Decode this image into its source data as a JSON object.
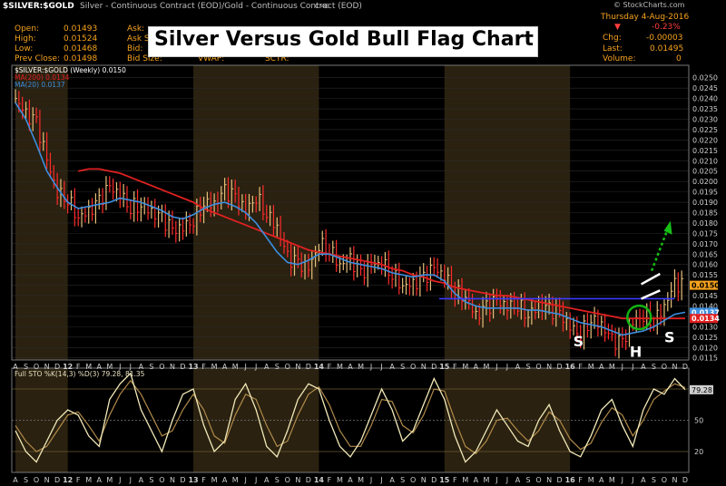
{
  "header": {
    "symbol": "$SILVER:$GOLD",
    "description": "Silver - Continuous Contract (EOD)/Gold - Continuous Contract (EOD)",
    "exchange": "CME",
    "watermark": "© StockCharts.com",
    "date": "Thursday 4-Aug-2016",
    "change_pct": "-0.23%",
    "chg_label": "Chg:",
    "chg_value": "-0.00003",
    "last_label": "Last:",
    "last_value": "0.01495",
    "volume_label": "Volume:",
    "volume_value": "0",
    "open_label": "Open:",
    "open_value": "0.01493",
    "high_label": "High:",
    "high_value": "0.01524",
    "low_label": "Low:",
    "low_value": "0.01468",
    "prev_label": "Prev Close:",
    "prev_value": "0.01498",
    "ask_label": "Ask:",
    "ask_label2": "Ask S",
    "bid_label": "Bid:",
    "bid_size_label": "Bid Size:",
    "vwap_label": "VWAP:",
    "sctr_label": "SCTR:"
  },
  "title_overlay": "Silver Versus Gold Bull Flag Chart",
  "colors": {
    "up_bar": "#e8c07a",
    "down_bar": "#ff2a2a",
    "ma200": "#e12020",
    "ma20": "#3d8fe0",
    "stoch_k": "#f2e9b8",
    "stoch_d": "#b08a4a",
    "band": "#2a2110",
    "neckline": "#3a3aff"
  },
  "chart_data": [
    {
      "type": "line",
      "title": "$SILVER:$GOLD (Weekly) 0.0150",
      "x_ticks": [
        "A",
        "S",
        "O",
        "N",
        "D",
        "12",
        "F",
        "M",
        "A",
        "M",
        "J",
        "J",
        "A",
        "S",
        "O",
        "N",
        "D",
        "13",
        "F",
        "M",
        "A",
        "M",
        "J",
        "J",
        "A",
        "S",
        "O",
        "N",
        "D",
        "14",
        "F",
        "M",
        "A",
        "M",
        "J",
        "J",
        "A",
        "S",
        "O",
        "N",
        "D",
        "15",
        "F",
        "M",
        "A",
        "M",
        "J",
        "J",
        "A",
        "S",
        "O",
        "N",
        "D",
        "16",
        "F",
        "M",
        "A",
        "M",
        "J",
        "J",
        "A",
        "S",
        "O",
        "N",
        "D"
      ],
      "y_ticks": [
        "0.0250",
        "0.0245",
        "0.0240",
        "0.0235",
        "0.0230",
        "0.0225",
        "0.0220",
        "0.0215",
        "0.0210",
        "0.0205",
        "0.0200",
        "0.0195",
        "0.0190",
        "0.0185",
        "0.0180",
        "0.0175",
        "0.0170",
        "0.0165",
        "0.0160",
        "0.0155",
        "0.0150",
        "0.0145",
        "0.0140",
        "0.0135",
        "0.0130",
        "0.0125",
        "0.0120",
        "0.0115"
      ],
      "ylim": [
        0.0114,
        0.0256
      ],
      "series": [
        {
          "name": "$SILVER:$GOLD (Weekly) 0.0150",
          "values": [
            0.024,
            0.0232,
            0.0228,
            0.021,
            0.0195,
            0.0192,
            0.0183,
            0.0185,
            0.019,
            0.0197,
            0.0194,
            0.0188,
            0.0189,
            0.0185,
            0.0182,
            0.0176,
            0.0178,
            0.0182,
            0.019,
            0.0189,
            0.0195,
            0.0192,
            0.0186,
            0.0193,
            0.0185,
            0.0178,
            0.0163,
            0.016,
            0.0158,
            0.017,
            0.0168,
            0.016,
            0.0162,
            0.0155,
            0.016,
            0.0161,
            0.0156,
            0.015,
            0.015,
            0.0153,
            0.0158,
            0.0155,
            0.0147,
            0.0145,
            0.0135,
            0.0139,
            0.0142,
            0.014,
            0.0141,
            0.0136,
            0.014,
            0.0138,
            0.0136,
            0.013,
            0.0127,
            0.0134,
            0.0131,
            0.0123,
            0.0122,
            0.0132,
            0.0136,
            0.0133,
            0.014,
            0.015,
            0.015
          ]
        },
        {
          "name": "MA(20) 0.0137",
          "values": [
            0.0238,
            0.023,
            0.0218,
            0.0205,
            0.0197,
            0.019,
            0.0187,
            0.0188,
            0.0189,
            0.019,
            0.0192,
            0.0191,
            0.019,
            0.0188,
            0.0186,
            0.0183,
            0.0182,
            0.0184,
            0.0187,
            0.0189,
            0.019,
            0.0188,
            0.0185,
            0.018,
            0.0173,
            0.0166,
            0.0161,
            0.016,
            0.0162,
            0.0165,
            0.0165,
            0.0163,
            0.0161,
            0.016,
            0.0159,
            0.0158,
            0.0156,
            0.0155,
            0.0154,
            0.0155,
            0.0155,
            0.0152,
            0.0146,
            0.0142,
            0.014,
            0.0139,
            0.0139,
            0.0139,
            0.0139,
            0.0138,
            0.0138,
            0.0137,
            0.0136,
            0.0134,
            0.0132,
            0.0131,
            0.013,
            0.0128,
            0.0126,
            0.0127,
            0.0128,
            0.013,
            0.0133,
            0.0136,
            0.0137
          ]
        },
        {
          "name": "MA(200) 0.0134",
          "values": [
            null,
            null,
            null,
            null,
            null,
            null,
            0.0205,
            0.0206,
            0.0206,
            0.0205,
            0.0204,
            0.0202,
            0.02,
            0.0198,
            0.0196,
            0.0194,
            0.0192,
            0.019,
            0.0187,
            0.0185,
            0.0183,
            0.0181,
            0.0179,
            0.0177,
            0.0175,
            0.0173,
            0.0171,
            0.0169,
            0.0167,
            0.0166,
            0.0165,
            0.0164,
            0.0163,
            0.0162,
            0.0161,
            0.016,
            0.0158,
            0.0157,
            0.0155,
            0.0154,
            0.0152,
            0.0151,
            0.0149,
            0.0148,
            0.0147,
            0.0146,
            0.0145,
            0.0145,
            0.0144,
            0.0143,
            0.0142,
            0.0141,
            0.014,
            0.0139,
            0.0138,
            0.0137,
            0.0136,
            0.0135,
            0.0134,
            0.0134,
            0.0134,
            0.0134,
            0.0134,
            0.0134,
            0.0134
          ]
        }
      ],
      "price_labels": [
        "0.0150",
        "0.0137",
        "0.0134"
      ],
      "annotations": [
        "S",
        "H",
        "S"
      ],
      "legend": [
        "$SILVER:$GOLD (Weekly) 0.0150",
        "MA(200) 0.0134",
        "MA(20) 0.0137"
      ]
    },
    {
      "type": "line",
      "title": "Full STO %K(14,3) %D(3) 79.28, 81.35",
      "ylim": [
        0,
        100
      ],
      "y_ticks": [
        "50",
        "20"
      ],
      "reference_lines": [
        80,
        50,
        20
      ],
      "value_label": "79.28",
      "series": [
        {
          "name": "%K(14,3)",
          "values": [
            40,
            20,
            10,
            30,
            50,
            60,
            55,
            35,
            25,
            70,
            85,
            95,
            60,
            40,
            20,
            50,
            75,
            80,
            45,
            20,
            30,
            70,
            85,
            60,
            25,
            15,
            40,
            70,
            85,
            80,
            50,
            25,
            15,
            30,
            55,
            80,
            60,
            30,
            40,
            65,
            90,
            70,
            35,
            10,
            20,
            40,
            60,
            45,
            30,
            25,
            50,
            65,
            40,
            20,
            15,
            35,
            60,
            70,
            45,
            25,
            60,
            80,
            75,
            90,
            79.28
          ]
        },
        {
          "name": "%D(3)",
          "values": [
            45,
            30,
            20,
            25,
            40,
            55,
            58,
            45,
            30,
            55,
            75,
            88,
            75,
            55,
            35,
            40,
            60,
            75,
            60,
            35,
            28,
            55,
            75,
            70,
            45,
            25,
            30,
            55,
            75,
            82,
            65,
            40,
            25,
            25,
            45,
            70,
            68,
            45,
            38,
            55,
            80,
            78,
            50,
            25,
            18,
            30,
            50,
            52,
            40,
            30,
            40,
            58,
            50,
            32,
            22,
            28,
            48,
            62,
            55,
            35,
            50,
            70,
            78,
            85,
            81.35
          ]
        }
      ]
    }
  ]
}
